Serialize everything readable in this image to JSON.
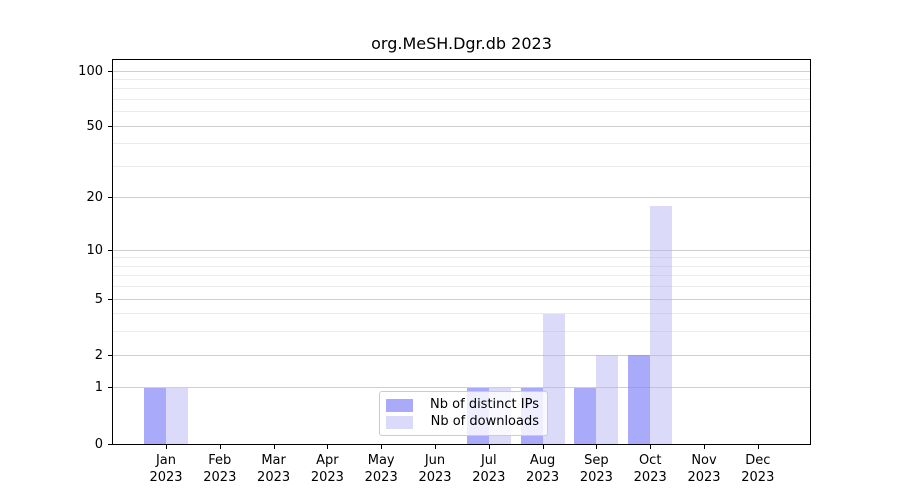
{
  "chart_data": {
    "type": "bar",
    "title": "org.MeSH.Dgr.db 2023",
    "categories": [
      "Jan 2023",
      "Feb 2023",
      "Mar 2023",
      "Apr 2023",
      "May 2023",
      "Jun 2023",
      "Jul 2023",
      "Aug 2023",
      "Sep 2023",
      "Oct 2023",
      "Nov 2023",
      "Dec 2023"
    ],
    "series": [
      {
        "name": "Nb of distinct IPs",
        "color": "rgba(134,134,249,0.7)",
        "values": [
          1,
          0,
          0,
          0,
          0,
          0,
          1,
          1,
          1,
          2,
          0,
          0
        ]
      },
      {
        "name": "Nb of downloads",
        "color": "rgba(175,175,242,0.45)",
        "values": [
          1,
          0,
          0,
          0,
          0,
          0,
          1,
          4,
          2,
          18,
          0,
          0
        ]
      }
    ],
    "yscale": "log1p",
    "yticks": [
      0,
      1,
      2,
      5,
      10,
      20,
      50,
      100
    ],
    "yminorticks": [
      3,
      4,
      6,
      7,
      8,
      9,
      30,
      40,
      60,
      70,
      80,
      90
    ],
    "ylim": [
      0,
      115
    ],
    "grid": true,
    "legend_position": "lower center"
  },
  "colors": {
    "major_grid": "#cfcfcf",
    "minor_grid": "#ebebeb",
    "axis": "#000000",
    "legend_border": "#cccccc",
    "background": "#ffffff"
  }
}
